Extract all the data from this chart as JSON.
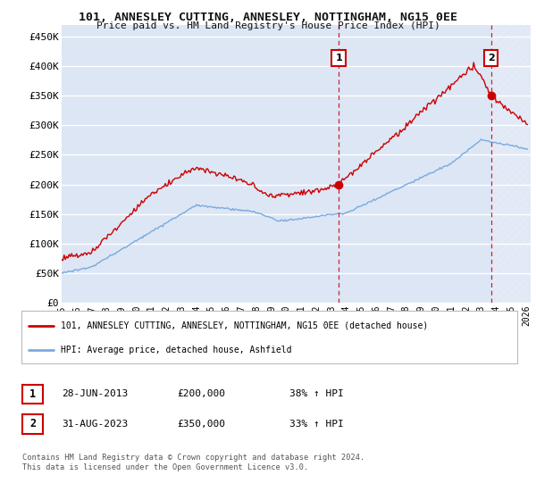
{
  "title": "101, ANNESLEY CUTTING, ANNESLEY, NOTTINGHAM, NG15 0EE",
  "subtitle": "Price paid vs. HM Land Registry's House Price Index (HPI)",
  "bg_color": "#dce6f5",
  "grid_color": "#ffffff",
  "line1_color": "#cc0000",
  "line2_color": "#7aaadd",
  "sale1_date": 2013.49,
  "sale1_price": 200000,
  "sale1_label": "1",
  "sale2_date": 2023.66,
  "sale2_price": 350000,
  "sale2_label": "2",
  "vline_color": "#cc0000",
  "xlim_start": 1995.0,
  "xlim_end": 2026.3,
  "ylim": [
    0,
    470000
  ],
  "yticks": [
    0,
    50000,
    100000,
    150000,
    200000,
    250000,
    300000,
    350000,
    400000,
    450000
  ],
  "ytick_labels": [
    "£0",
    "£50K",
    "£100K",
    "£150K",
    "£200K",
    "£250K",
    "£300K",
    "£350K",
    "£400K",
    "£450K"
  ],
  "footer": "Contains HM Land Registry data © Crown copyright and database right 2024.\nThis data is licensed under the Open Government Licence v3.0.",
  "legend_label1": "101, ANNESLEY CUTTING, ANNESLEY, NOTTINGHAM, NG15 0EE (detached house)",
  "legend_label2": "HPI: Average price, detached house, Ashfield",
  "table_row1": [
    "1",
    "28-JUN-2013",
    "£200,000",
    "38% ↑ HPI"
  ],
  "table_row2": [
    "2",
    "31-AUG-2023",
    "£350,000",
    "33% ↑ HPI"
  ]
}
